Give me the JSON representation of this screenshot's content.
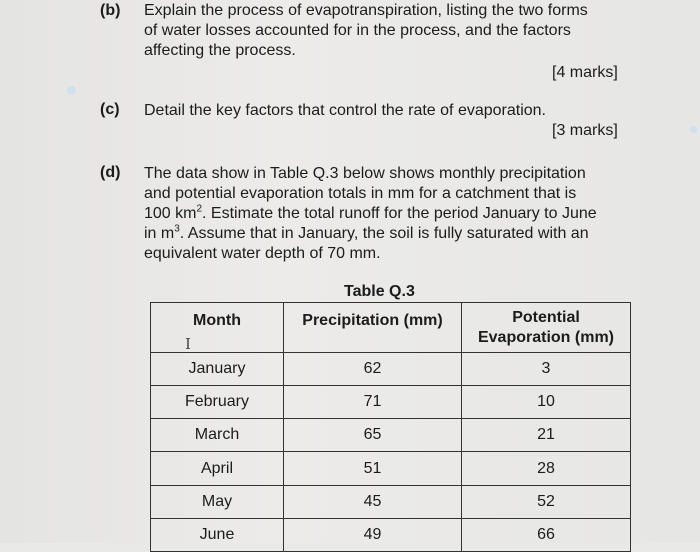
{
  "part_b": {
    "label": "(b)",
    "lines": [
      "Explain the process of evapotranspiration, listing the two forms",
      "of water losses accounted for in the process, and the factors",
      "affecting the process."
    ],
    "marks": "[4 marks]"
  },
  "part_c": {
    "label": "(c)",
    "text": "Detail the key factors that control the rate of evaporation.",
    "marks": "[3 marks]"
  },
  "part_d": {
    "label": "(d)",
    "line1": "The data show in Table Q.3 below shows monthly precipitation",
    "line2": "and potential evaporation totals in mm for a catchment that is",
    "line3_pre": "100 km",
    "line3_sup": "2",
    "line3_post": ". Estimate the total runoff for the period January to June",
    "line4_pre": "in m",
    "line4_sup": "3",
    "line4_post": ". Assume that in January, the soil is fully saturated with an",
    "line5": "equivalent water depth of 70 mm."
  },
  "table": {
    "caption": "Table Q.3",
    "headers": [
      "Month",
      "Precipitation (mm)",
      "Potential\nEvaporation (mm)"
    ],
    "cursor_glyph": "I",
    "rows": [
      [
        "January",
        "62",
        "3"
      ],
      [
        "February",
        "71",
        "10"
      ],
      [
        "March",
        "65",
        "21"
      ],
      [
        "April",
        "51",
        "28"
      ],
      [
        "May",
        "45",
        "52"
      ],
      [
        "June",
        "49",
        "66"
      ]
    ]
  }
}
